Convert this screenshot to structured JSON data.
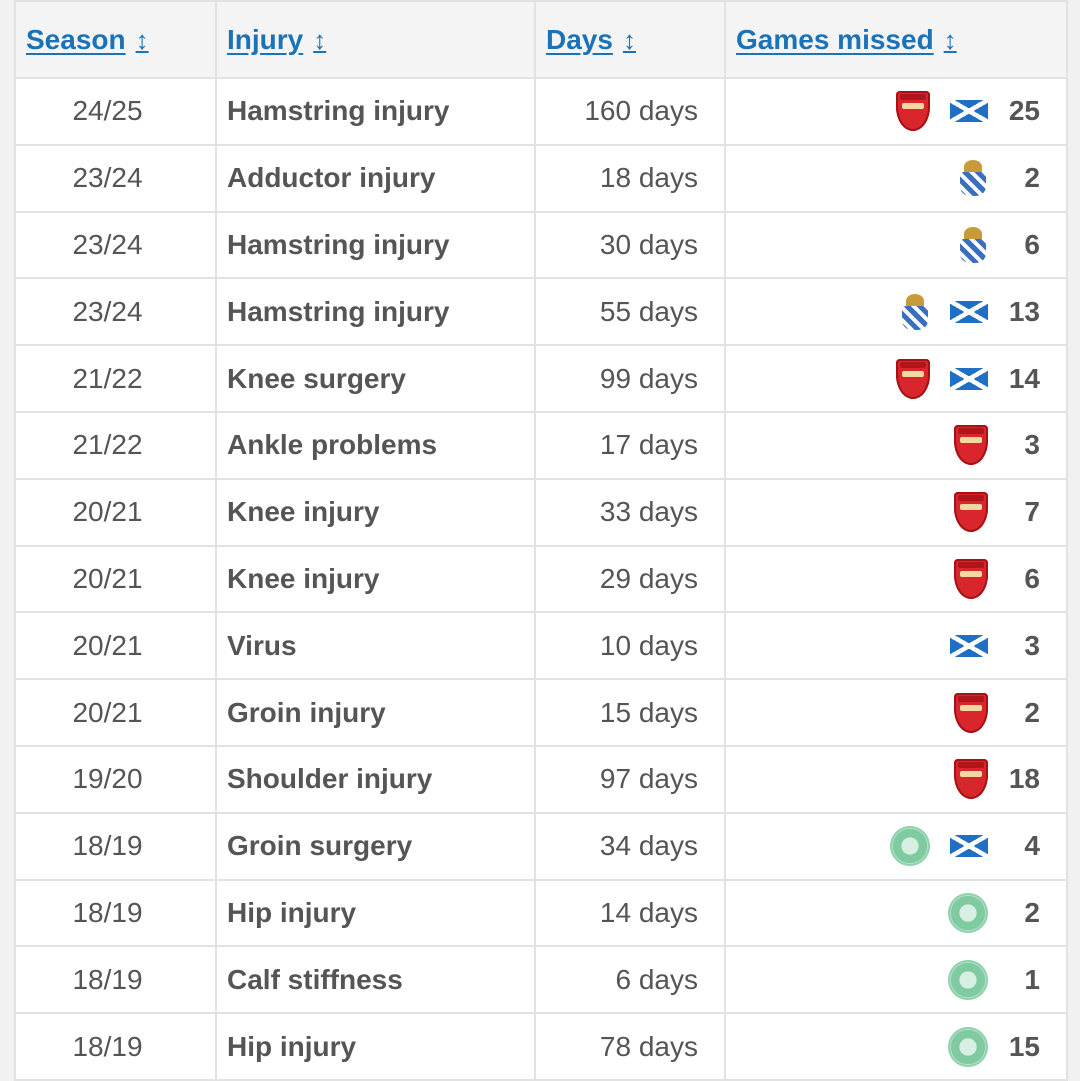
{
  "table": {
    "headers": {
      "season": "Season",
      "injury": "Injury",
      "days": "Days",
      "games": "Games missed",
      "sort_glyph": "↕"
    },
    "icon_colors": {
      "arsenal": "#d8262c",
      "scotland": "#1f6fc5",
      "sociedad": "#3a6fc0",
      "celtic": "#7fcaa0",
      "header_link": "#1a73b8"
    },
    "rows": [
      {
        "season": "24/25",
        "injury": "Hamstring injury",
        "days": "160 days",
        "icons": [
          "arsenal-crest-icon",
          "scotland-flag-icon"
        ],
        "games": "25"
      },
      {
        "season": "23/24",
        "injury": "Adductor injury",
        "days": "18 days",
        "icons": [
          "real-sociedad-crest-icon"
        ],
        "games": "2"
      },
      {
        "season": "23/24",
        "injury": "Hamstring injury",
        "days": "30 days",
        "icons": [
          "real-sociedad-crest-icon"
        ],
        "games": "6"
      },
      {
        "season": "23/24",
        "injury": "Hamstring injury",
        "days": "55 days",
        "icons": [
          "real-sociedad-crest-icon",
          "scotland-flag-icon"
        ],
        "games": "13"
      },
      {
        "season": "21/22",
        "injury": "Knee surgery",
        "days": "99 days",
        "icons": [
          "arsenal-crest-icon",
          "scotland-flag-icon"
        ],
        "games": "14"
      },
      {
        "season": "21/22",
        "injury": "Ankle problems",
        "days": "17 days",
        "icons": [
          "arsenal-crest-icon"
        ],
        "games": "3"
      },
      {
        "season": "20/21",
        "injury": "Knee injury",
        "days": "33 days",
        "icons": [
          "arsenal-crest-icon"
        ],
        "games": "7"
      },
      {
        "season": "20/21",
        "injury": "Knee injury",
        "days": "29 days",
        "icons": [
          "arsenal-crest-icon"
        ],
        "games": "6"
      },
      {
        "season": "20/21",
        "injury": "Virus",
        "days": "10 days",
        "icons": [
          "scotland-flag-icon"
        ],
        "games": "3"
      },
      {
        "season": "20/21",
        "injury": "Groin injury",
        "days": "15 days",
        "icons": [
          "arsenal-crest-icon"
        ],
        "games": "2"
      },
      {
        "season": "19/20",
        "injury": "Shoulder injury",
        "days": "97 days",
        "icons": [
          "arsenal-crest-icon"
        ],
        "games": "18"
      },
      {
        "season": "18/19",
        "injury": "Groin surgery",
        "days": "34 days",
        "icons": [
          "celtic-crest-icon",
          "scotland-flag-icon"
        ],
        "games": "4"
      },
      {
        "season": "18/19",
        "injury": "Hip injury",
        "days": "14 days",
        "icons": [
          "celtic-crest-icon"
        ],
        "games": "2"
      },
      {
        "season": "18/19",
        "injury": "Calf stiffness",
        "days": "6 days",
        "icons": [
          "celtic-crest-icon"
        ],
        "games": "1"
      },
      {
        "season": "18/19",
        "injury": "Hip injury",
        "days": "78 days",
        "icons": [
          "celtic-crest-icon"
        ],
        "games": "15"
      }
    ]
  }
}
